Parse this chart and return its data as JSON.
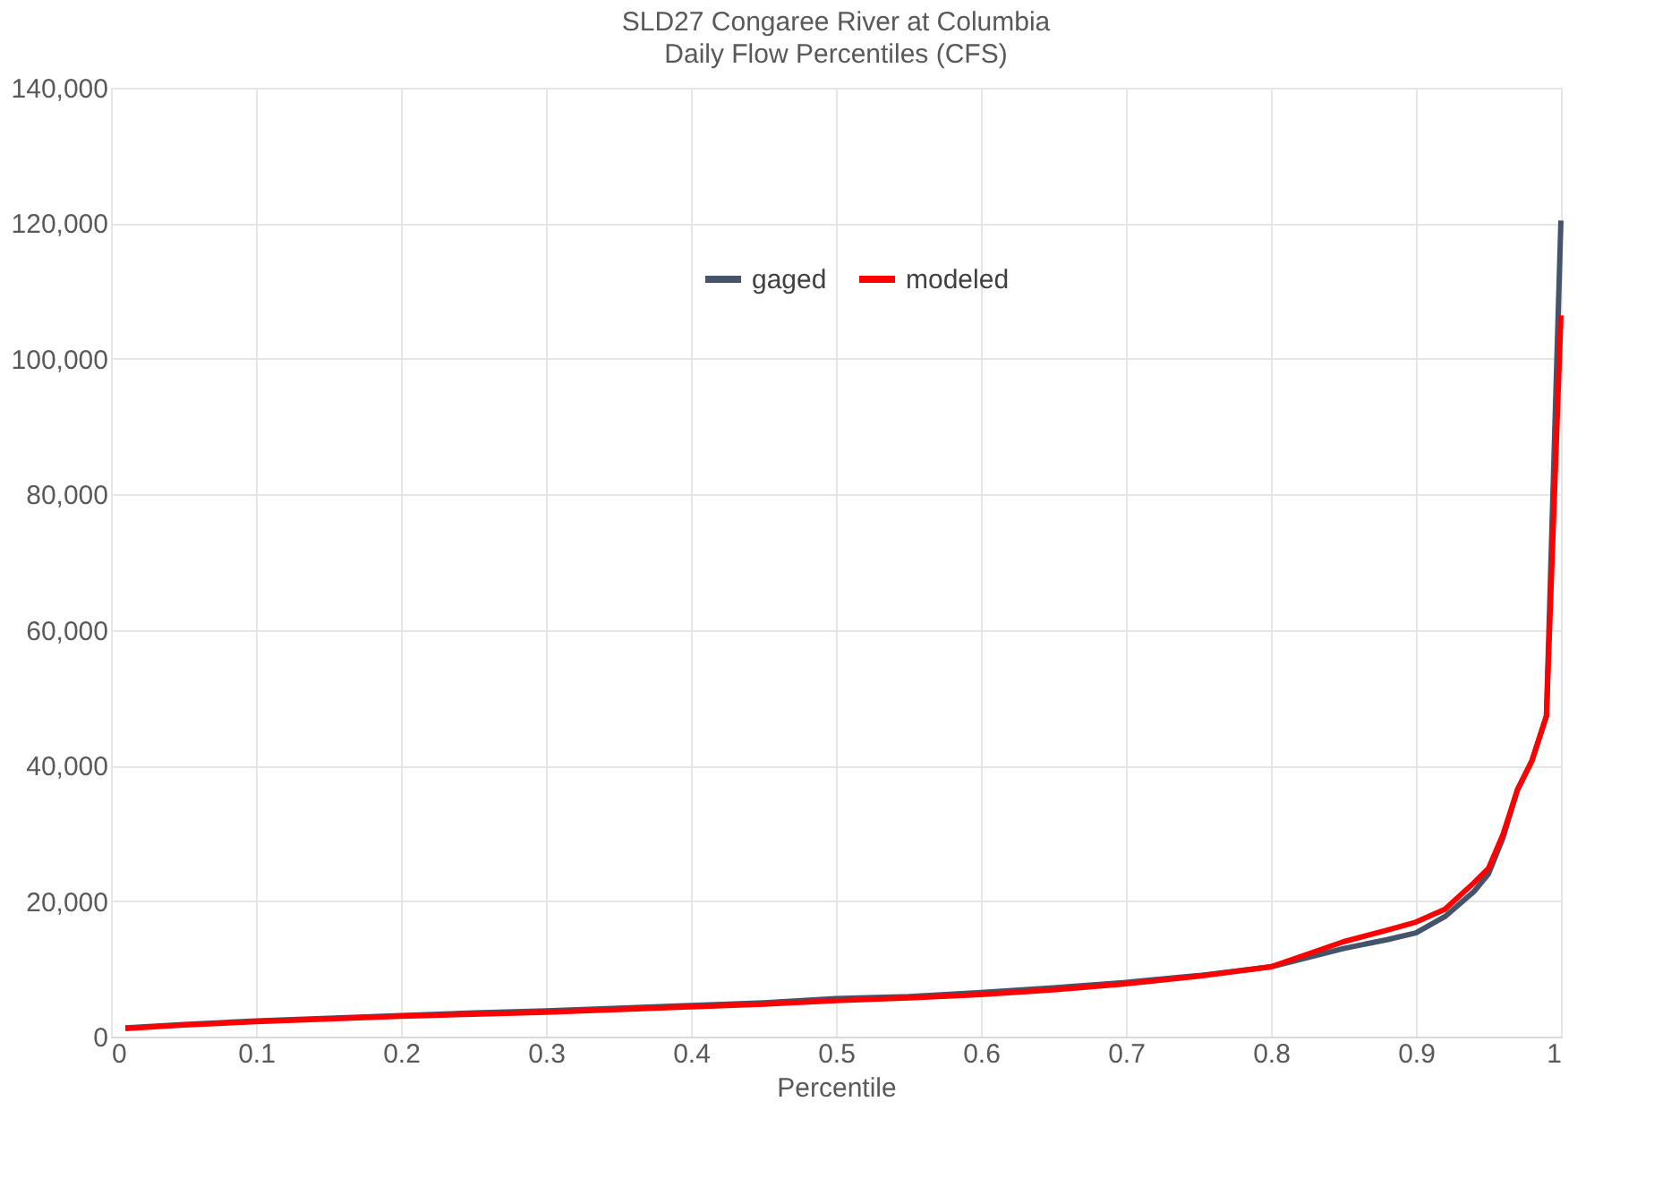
{
  "chart_data": {
    "type": "line",
    "title": "SLD27 Congaree River at Columbia",
    "subtitle": "Daily Flow Percentiles (CFS)",
    "xlabel": "Percentile",
    "x": [
      0.01,
      0.05,
      0.1,
      0.15,
      0.2,
      0.25,
      0.3,
      0.35,
      0.4,
      0.45,
      0.5,
      0.55,
      0.6,
      0.65,
      0.7,
      0.75,
      0.8,
      0.85,
      0.88,
      0.9,
      0.92,
      0.94,
      0.95,
      0.96,
      0.97,
      0.98,
      0.99,
      1.0
    ],
    "series": [
      {
        "name": "gaged",
        "color": "#44546a",
        "values": [
          1300,
          1800,
          2300,
          2700,
          3100,
          3500,
          3800,
          4200,
          4600,
          5000,
          5600,
          5900,
          6500,
          7200,
          8000,
          9000,
          10300,
          13000,
          14300,
          15300,
          17700,
          21400,
          24000,
          29300,
          36400,
          40700,
          47300,
          120400
        ]
      },
      {
        "name": "modeled",
        "color": "#ff0000",
        "values": [
          1200,
          1700,
          2200,
          2600,
          3000,
          3300,
          3600,
          4000,
          4400,
          4800,
          5300,
          5700,
          6200,
          6900,
          7800,
          8900,
          10300,
          14000,
          15700,
          16900,
          18800,
          22700,
          24800,
          29800,
          36400,
          40700,
          47300,
          106400
        ]
      }
    ],
    "xlim": [
      0,
      1
    ],
    "ylim": [
      0,
      140000
    ],
    "xticks": [
      0,
      0.1,
      0.2,
      0.3,
      0.4,
      0.5,
      0.6,
      0.7,
      0.8,
      0.9,
      1
    ],
    "yticks": [
      0,
      {
        "value": 20000,
        "label": "20,000"
      },
      {
        "value": 40000,
        "label": "40,000"
      },
      {
        "value": 60000,
        "label": "60,000"
      },
      {
        "value": 80000,
        "label": "80,000"
      },
      {
        "value": 100000,
        "label": "100,000"
      },
      {
        "value": 120000,
        "label": "120,000"
      },
      {
        "value": 140000,
        "label": "140,000"
      }
    ],
    "grid": true,
    "legend": "top",
    "marker": "none",
    "line_style": "solid"
  }
}
